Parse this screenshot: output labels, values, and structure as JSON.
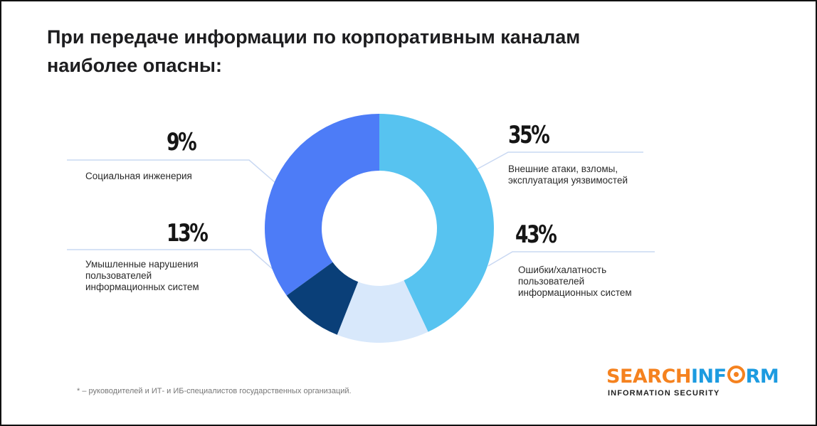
{
  "title_lines": [
    "При передаче информации по корпоративным каналам",
    "наиболее опасны:"
  ],
  "chart_data": {
    "type": "pie",
    "donut": true,
    "title": "При передаче информации по корпоративным каналам наиболее опасны:",
    "slices": [
      {
        "label": "Внешние атаки, взломы, эксплуатация уязвимостей",
        "value": 35,
        "display": "35%",
        "color": "#4d7cf7"
      },
      {
        "label": "Ошибки/халатность пользователей информационных систем",
        "value": 43,
        "display": "43%",
        "color": "#57c3f0"
      },
      {
        "label": "Умышленные нарушения пользователей информационных систем",
        "value": 13,
        "display": "13%",
        "color": "#d8e8fb"
      },
      {
        "label": "Социальная инженерия",
        "value": 9,
        "display": "9%",
        "color": "#0a3f78"
      }
    ]
  },
  "labels": {
    "external_attacks": {
      "value": "35%",
      "lines": [
        "Внешние атаки, взломы,",
        "эксплуатация уязвимостей"
      ]
    },
    "errors": {
      "value": "43%",
      "lines": [
        "Ошибки/халатность",
        "пользователей",
        "информационных систем"
      ]
    },
    "intentional": {
      "value": "13%",
      "lines": [
        "Умышленные нарушения",
        "пользователей",
        "информационных систем"
      ]
    },
    "social": {
      "value": "9%",
      "lines": [
        "Социальная инженерия"
      ]
    }
  },
  "footnote": "* – руководителей и ИТ- и ИБ-специалистов государственных организаций.",
  "logo": {
    "part1": "SEARCH",
    "part2a": "INF",
    "part2b": "RM",
    "subtitle": "INFORMATION SECURITY"
  },
  "colors": {
    "leader_line": "#c9d8f2"
  }
}
